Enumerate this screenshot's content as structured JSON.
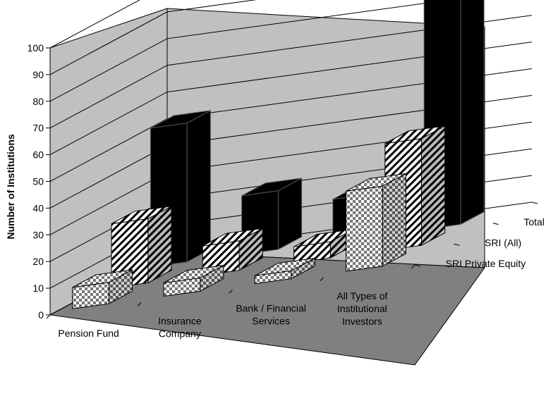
{
  "chart_data": {
    "type": "bar",
    "projection": "3d",
    "ylabel": "Number of Institutions",
    "ylim": [
      0,
      100
    ],
    "yticks": [
      "0",
      "10",
      "20",
      "30",
      "40",
      "50",
      "60",
      "70",
      "80",
      "90",
      "100"
    ],
    "categories": [
      "Pension Fund",
      "Insurance Company",
      "Bank / Financial Services",
      "All Types of Institutional Investors"
    ],
    "category_lines": [
      [
        "Pension Fund"
      ],
      [
        "Insurance",
        "Company"
      ],
      [
        "Bank / Financial",
        "Services"
      ],
      [
        "All Types of",
        "Institutional",
        "Investors"
      ]
    ],
    "series": [
      {
        "name": "SRI Private Equity",
        "pattern": "checker",
        "values": [
          8,
          5,
          3,
          30
        ]
      },
      {
        "name": "SRI (All)",
        "pattern": "diagonal",
        "values": [
          24,
          11,
          6,
          40
        ]
      },
      {
        "name": "Total Sample",
        "pattern": "solid",
        "values": [
          52,
          22,
          16,
          96
        ]
      }
    ],
    "grid": true,
    "legend": "right-depth-axis"
  },
  "colors": {
    "wall": "#c0c0c0",
    "floor": "#808080",
    "solid_bar": "#000000"
  }
}
